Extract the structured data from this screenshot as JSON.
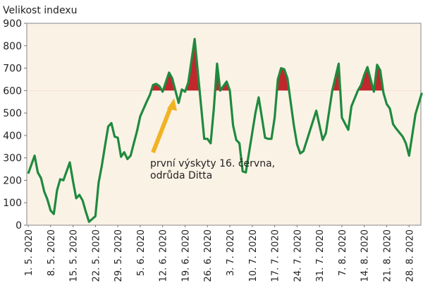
{
  "chart_data": {
    "type": "line",
    "title": "",
    "ylabel": "Velikost indexu",
    "xlabel": "",
    "ylim": [
      0,
      900
    ],
    "yticks": [
      0,
      100,
      200,
      300,
      400,
      500,
      600,
      700,
      800,
      900
    ],
    "xticks": [
      "1. 5. 2020",
      "8. 5. 2020",
      "15. 5. 2020",
      "22. 5. 2020",
      "29. 5. 2020",
      "5. 6. 2020",
      "12. 6. 2020",
      "19. 6. 2020",
      "26. 6. 2020",
      "3. 7. 2020",
      "10. 7. 2020",
      "17. 7. 2020",
      "24. 7. 2020",
      "31. 7. 2020",
      "7. 8. 2020",
      "14. 8. 2020",
      "21. 8. 2020",
      "28. 8. 2020"
    ],
    "threshold": 600,
    "colors": {
      "line": "#1f8a3e",
      "above_threshold_fill": "#c1272d",
      "plot_background": "#fbf2e6",
      "arrow": "#f0b323"
    },
    "annotation": {
      "line1": "první výskyty 16.  června,",
      "line2": "odrůda Ditta",
      "date": "16. 6. 2020"
    },
    "series": [
      {
        "dates": [
          "1.5",
          "3.5",
          "4.5",
          "5.5",
          "6.5",
          "7.5",
          "8.5",
          "9.5",
          "10.5",
          "11.5",
          "12.5",
          "13.5",
          "14.5",
          "15.5",
          "16.5",
          "17.5",
          "18.5",
          "19.5",
          "20.5",
          "22.5",
          "23.5",
          "24.5",
          "25.5",
          "26.5",
          "27.5",
          "28.5",
          "29.5",
          "30.5",
          "31.5",
          "1.6",
          "2.6",
          "3.6",
          "4.6",
          "5.6",
          "7.6",
          "8.6",
          "9.6",
          "10.6",
          "11.6",
          "12.6",
          "14.6",
          "15.6",
          "16.6",
          "17.6",
          "18.6",
          "19.6",
          "20.6",
          "22.6",
          "25.6",
          "26.6",
          "27.6",
          "28.6",
          "29.6",
          "30.6",
          "2.7",
          "3.7",
          "4.7",
          "5.7",
          "6.7",
          "7.7",
          "8.7",
          "11.7",
          "12.7",
          "14.7",
          "15.7",
          "16.7",
          "17.7",
          "18.7",
          "19.7",
          "20.7",
          "21.7",
          "23.7",
          "24.7",
          "25.7",
          "26.7",
          "28.7",
          "30.7",
          "1.8",
          "2.8",
          "4.8",
          "6.8",
          "7.8",
          "9.8",
          "10.8",
          "12.8",
          "13.8",
          "14.8",
          "15.8",
          "17.8",
          "18.8",
          "19.8",
          "20.8",
          "21.8",
          "22.8",
          "23.8",
          "24.8",
          "26.8",
          "27.8",
          "28.8",
          "30.8",
          "1.9"
        ],
        "values": [
          230,
          310,
          235,
          210,
          150,
          115,
          65,
          50,
          155,
          205,
          200,
          240,
          280,
          195,
          120,
          135,
          110,
          60,
          15,
          40,
          190,
          265,
          355,
          440,
          455,
          395,
          390,
          305,
          325,
          295,
          310,
          365,
          420,
          485,
          550,
          580,
          625,
          630,
          620,
          595,
          680,
          655,
          600,
          545,
          605,
          595,
          635,
          830,
          385,
          385,
          365,
          520,
          720,
          600,
          640,
          600,
          445,
          380,
          365,
          240,
          235,
          500,
          570,
          390,
          385,
          385,
          480,
          650,
          700,
          695,
          655,
          445,
          360,
          320,
          330,
          420,
          510,
          380,
          410,
          600,
          720,
          480,
          425,
          530,
          600,
          625,
          670,
          705,
          595,
          715,
          690,
          590,
          540,
          520,
          450,
          430,
          395,
          365,
          310,
          495,
          590
        ]
      }
    ]
  }
}
